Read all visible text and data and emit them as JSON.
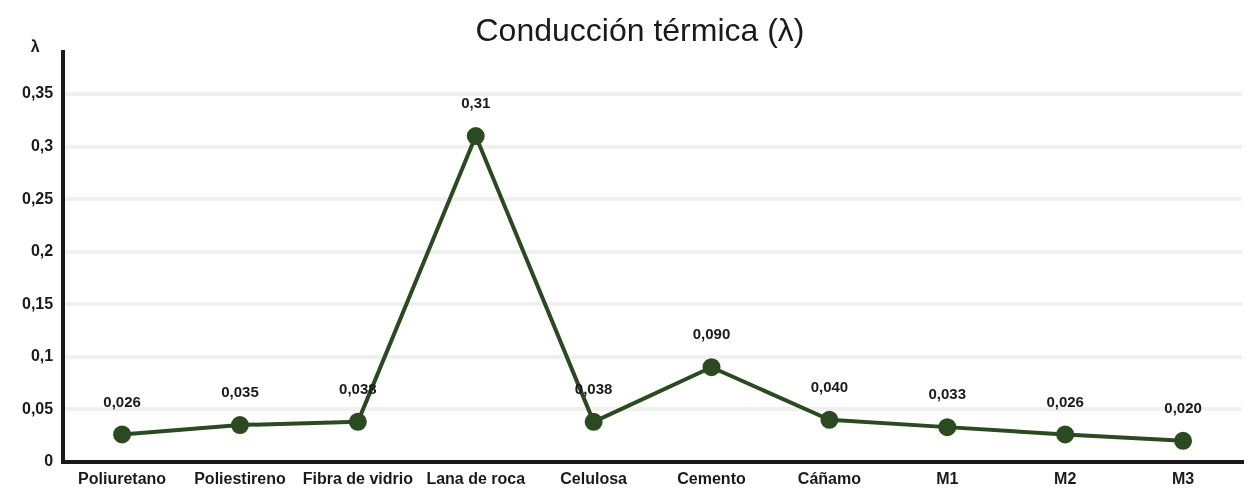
{
  "chart_data": {
    "type": "line",
    "title": "Conducción térmica (λ)",
    "ylabel": "λ",
    "categories": [
      "Poliuretano",
      "Poliestireno",
      "Fibra de vidrio",
      "Lana de roca",
      "Celulosa",
      "Cemento",
      "Cáñamo",
      "M1",
      "M2",
      "M3"
    ],
    "values": [
      0.026,
      0.035,
      0.038,
      0.31,
      0.038,
      0.09,
      0.04,
      0.033,
      0.026,
      0.02
    ],
    "value_labels": [
      "0,026",
      "0,035",
      "0,038",
      "0,31",
      "0,038",
      "0,090",
      "0,040",
      "0,033",
      "0,026",
      "0,020"
    ],
    "color": "#2c4a21",
    "marker": "circle",
    "line_style": "solid",
    "ylim": [
      0,
      0.39
    ],
    "yticks": [
      0,
      {
        "value": 0.05,
        "label": "0,05"
      },
      {
        "value": 0.1,
        "label": "0,1"
      },
      {
        "value": 0.15,
        "label": "0,15"
      },
      {
        "value": 0.2,
        "label": "0,2"
      },
      {
        "value": 0.25,
        "label": "0,25"
      },
      {
        "value": 0.3,
        "label": "0,3"
      },
      {
        "value": 0.35,
        "label": "0,35"
      }
    ],
    "grid": "y"
  }
}
